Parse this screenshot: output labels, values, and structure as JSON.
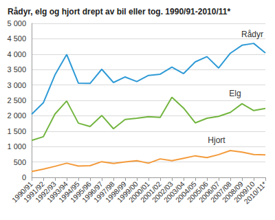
{
  "chart_data": {
    "type": "line",
    "title": "Rådyr, elg og hjort drept av bil eller tog. 1990/91-2010/11*",
    "categories": [
      "1990/91",
      "1991/92",
      "1992/93",
      "1993/94",
      "1994/95",
      "1995/96",
      "1996/97",
      "1997/98",
      "1998/99",
      "1999/00",
      "2000/01",
      "2001/02",
      "2002/03",
      "2003/04",
      "2004/05",
      "2005/06",
      "2006/07",
      "2007/08",
      "2008/09",
      "2009/10",
      "2010/11*"
    ],
    "series": [
      {
        "name": "Rådyr",
        "color": "#2e9ad6",
        "values": [
          2050,
          2420,
          3330,
          3990,
          3060,
          3050,
          3510,
          3080,
          3260,
          3110,
          3310,
          3350,
          3580,
          3370,
          3750,
          3920,
          3550,
          4030,
          4290,
          4350,
          4040
        ]
      },
      {
        "name": "Elg",
        "color": "#72b53f",
        "values": [
          1200,
          1320,
          2060,
          2480,
          1760,
          1650,
          2010,
          1580,
          1880,
          1920,
          1970,
          1950,
          2600,
          2250,
          1770,
          1920,
          1980,
          2110,
          2390,
          2170,
          2240
        ]
      },
      {
        "name": "Hjort",
        "color": "#f39a3a",
        "values": [
          190,
          270,
          360,
          460,
          370,
          380,
          510,
          450,
          500,
          540,
          460,
          600,
          540,
          620,
          700,
          640,
          740,
          870,
          820,
          740,
          730
        ]
      }
    ],
    "ylim": [
      0,
      5000
    ],
    "yticks": [
      0,
      500,
      {
        "value": 1000,
        "label": "1 000"
      },
      {
        "value": 1500,
        "label": "1 500"
      },
      {
        "value": 2000,
        "label": "2 000"
      },
      {
        "value": 2500,
        "label": "2 500"
      },
      {
        "value": 3000,
        "label": "3 000"
      },
      {
        "value": 3500,
        "label": "3 500"
      },
      {
        "value": 4000,
        "label": "4 000"
      },
      {
        "value": 4500,
        "label": "4 500"
      },
      {
        "value": 5000,
        "label": "5 000"
      }
    ],
    "grid": true
  }
}
